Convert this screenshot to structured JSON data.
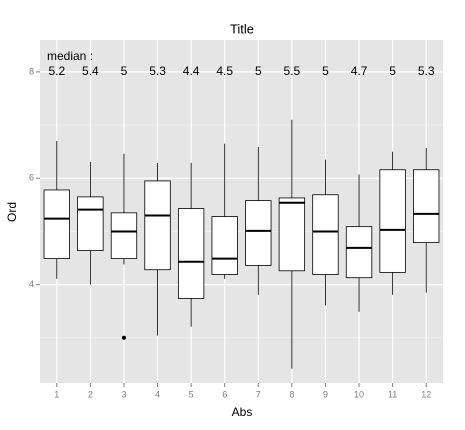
{
  "chart_data": {
    "type": "boxplot",
    "title": "Title",
    "x_label": "Abs",
    "y_label": "Ord",
    "annotation": "median :",
    "categories": [
      "1",
      "2",
      "3",
      "4",
      "5",
      "6",
      "7",
      "8",
      "9",
      "10",
      "11",
      "12"
    ],
    "low": [
      4.11,
      4.0,
      4.38,
      3.04,
      3.21,
      4.11,
      3.81,
      2.42,
      3.61,
      3.49,
      3.81,
      3.85
    ],
    "q1": [
      4.49,
      4.64,
      4.49,
      4.28,
      3.74,
      4.19,
      4.36,
      4.26,
      4.19,
      4.13,
      4.23,
      4.79
    ],
    "median": [
      5.24,
      5.41,
      5.0,
      5.3,
      4.43,
      4.49,
      5.01,
      5.54,
      5.0,
      4.69,
      5.03,
      5.33
    ],
    "median_labels": [
      "5.2",
      "5.4",
      "5",
      "5.3",
      "4.4",
      "4.5",
      "5",
      "5.5",
      "5",
      "4.7",
      "5",
      "5.3"
    ],
    "q3": [
      5.78,
      5.65,
      5.35,
      5.95,
      5.43,
      5.28,
      5.58,
      5.63,
      5.69,
      5.09,
      6.16,
      6.16
    ],
    "high": [
      6.7,
      6.31,
      6.46,
      6.29,
      6.29,
      6.65,
      6.59,
      7.1,
      6.35,
      6.07,
      6.5,
      6.57
    ],
    "outliers": [
      [],
      [],
      [
        3.0
      ],
      [],
      [],
      [],
      [],
      [],
      [],
      [],
      [],
      []
    ],
    "ylim": [
      2.15,
      8.6
    ],
    "yticks": [
      4,
      6,
      8
    ],
    "minor_yticks": [
      3,
      5,
      7
    ],
    "grid": true,
    "panel_color": "#e5e5e5",
    "box_fill": "#ffffff",
    "box_stroke": "#000000"
  }
}
